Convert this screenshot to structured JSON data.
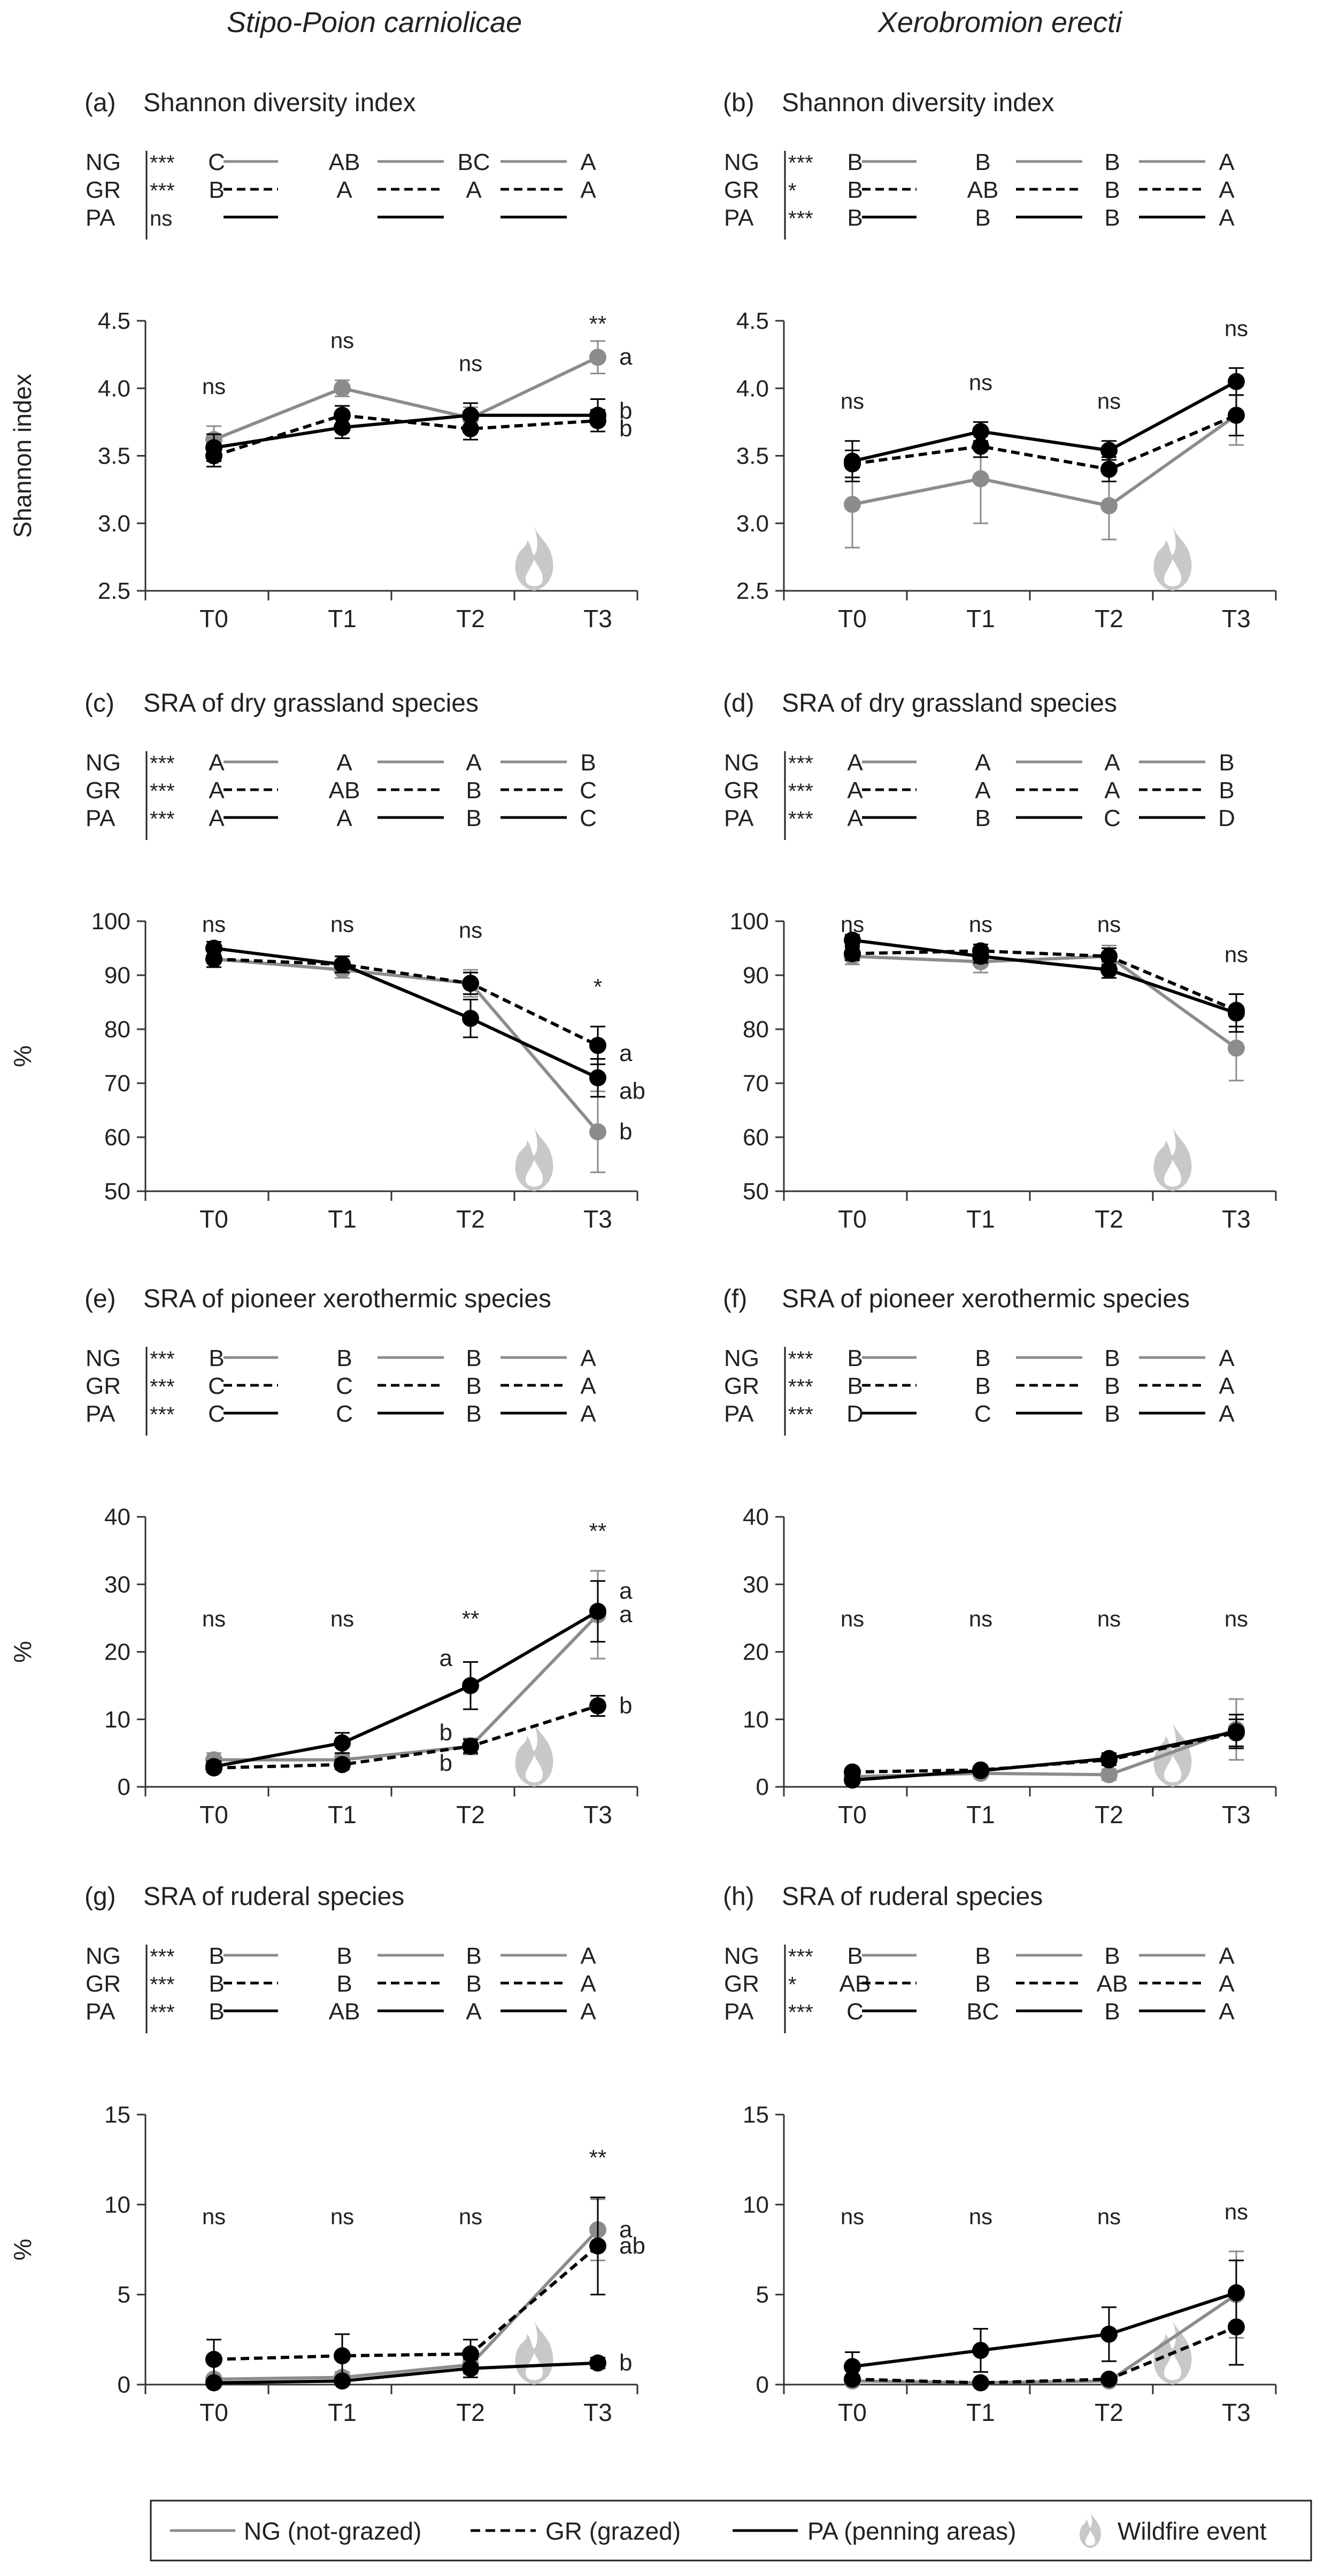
{
  "column_titles": [
    "Stipo-Poion carniolicae",
    "Xerobromion erecti"
  ],
  "legend": {
    "ng": "NG (not-grazed)",
    "gr": "GR (grazed)",
    "pa": "PA (penning areas)",
    "fire": "Wildfire event"
  },
  "colors": {
    "ng": "#8c8c8c",
    "gr": "#000000",
    "pa": "#000000",
    "fire": "#c8c8c8",
    "axis": "#333333"
  },
  "icons": {
    "fire": "flame-icon"
  },
  "shared": {
    "time_labels": [
      "T0",
      "T1",
      "T2",
      "T3"
    ],
    "treatments": [
      "NG",
      "GR",
      "PA"
    ],
    "fire_after": "T2"
  },
  "chart_data": [
    {
      "id": "a",
      "type": "line",
      "panel_label": "(a)",
      "title": "Shannon diversity index",
      "ylabel": "Shannon index",
      "ylim": [
        2.5,
        4.5
      ],
      "yticks": [
        "2.5",
        "3.0",
        "3.5",
        "4.0",
        "4.5"
      ],
      "x": [
        "T0",
        "T1",
        "T2",
        "T3"
      ],
      "series": [
        {
          "name": "NG",
          "values": [
            3.62,
            4.0,
            3.78,
            4.23
          ],
          "err": [
            0.1,
            0.06,
            0.08,
            0.12
          ]
        },
        {
          "name": "GR",
          "values": [
            3.5,
            3.8,
            3.7,
            3.76
          ],
          "err": [
            0.08,
            0.07,
            0.08,
            0.08
          ]
        },
        {
          "name": "PA",
          "values": [
            3.56,
            3.71,
            3.8,
            3.8
          ],
          "err": [
            0.1,
            0.08,
            0.09,
            0.12
          ]
        }
      ],
      "sig_time": [
        "ns",
        "ns",
        "ns",
        "**"
      ],
      "point_letters": [
        {
          "x": "T3",
          "y": 4.23,
          "text": "a"
        },
        {
          "x": "T3",
          "y": 3.83,
          "text": "b"
        },
        {
          "x": "T3",
          "y": 3.7,
          "text": "b"
        }
      ],
      "posthoc": [
        {
          "treat": "NG",
          "sig": "***",
          "letters": [
            "C",
            "AB",
            "BC",
            "A"
          ]
        },
        {
          "treat": "GR",
          "sig": "***",
          "letters": [
            "B",
            "A",
            "A",
            "A"
          ]
        },
        {
          "treat": "PA",
          "sig": "ns",
          "letters": [
            "",
            "",
            "",
            ""
          ]
        }
      ]
    },
    {
      "id": "b",
      "type": "line",
      "panel_label": "(b)",
      "title": "Shannon diversity index",
      "ylabel": "",
      "ylim": [
        2.5,
        4.5
      ],
      "yticks": [
        "2.5",
        "3.0",
        "3.5",
        "4.0",
        "4.5"
      ],
      "x": [
        "T0",
        "T1",
        "T2",
        "T3"
      ],
      "series": [
        {
          "name": "NG",
          "values": [
            3.14,
            3.33,
            3.13,
            3.8
          ],
          "err": [
            0.32,
            0.33,
            0.25,
            0.22
          ]
        },
        {
          "name": "GR",
          "values": [
            3.44,
            3.57,
            3.4,
            3.8
          ],
          "err": [
            0.1,
            0.08,
            0.09,
            0.15
          ]
        },
        {
          "name": "PA",
          "values": [
            3.46,
            3.68,
            3.54,
            4.05
          ],
          "err": [
            0.15,
            0.07,
            0.07,
            0.1
          ]
        }
      ],
      "sig_time": [
        "ns",
        "ns",
        "ns",
        "ns"
      ],
      "point_letters": [],
      "posthoc": [
        {
          "treat": "NG",
          "sig": "***",
          "letters": [
            "B",
            "B",
            "B",
            "A"
          ]
        },
        {
          "treat": "GR",
          "sig": "*",
          "letters": [
            "B",
            "AB",
            "B",
            "A"
          ]
        },
        {
          "treat": "PA",
          "sig": "***",
          "letters": [
            "B",
            "B",
            "B",
            "A"
          ]
        }
      ]
    },
    {
      "id": "c",
      "type": "line",
      "panel_label": "(c)",
      "title": "SRA of dry grassland species",
      "ylabel": "%",
      "ylim": [
        50,
        100
      ],
      "yticks": [
        "50",
        "60",
        "70",
        "80",
        "90",
        "100"
      ],
      "x": [
        "T0",
        "T1",
        "T2",
        "T3"
      ],
      "series": [
        {
          "name": "NG",
          "values": [
            93,
            91,
            88.5,
            61
          ],
          "err": [
            1.5,
            1.5,
            2.5,
            7.5
          ]
        },
        {
          "name": "GR",
          "values": [
            93,
            92,
            88.5,
            77
          ],
          "err": [
            1.5,
            1.5,
            2,
            3.5
          ]
        },
        {
          "name": "PA",
          "values": [
            95,
            92,
            82,
            71
          ],
          "err": [
            1.2,
            1.5,
            3.5,
            3.5
          ]
        }
      ],
      "sig_time": [
        "ns",
        "ns",
        "ns",
        "*"
      ],
      "point_letters": [
        {
          "x": "T3",
          "y": 75.5,
          "text": "a"
        },
        {
          "x": "T3",
          "y": 68.5,
          "text": "ab"
        },
        {
          "x": "T3",
          "y": 61,
          "text": "b"
        }
      ],
      "posthoc": [
        {
          "treat": "NG",
          "sig": "***",
          "letters": [
            "A",
            "A",
            "A",
            "B"
          ]
        },
        {
          "treat": "GR",
          "sig": "***",
          "letters": [
            "A",
            "AB",
            "B",
            "C"
          ]
        },
        {
          "treat": "PA",
          "sig": "***",
          "letters": [
            "A",
            "A",
            "B",
            "C"
          ]
        }
      ]
    },
    {
      "id": "d",
      "type": "line",
      "panel_label": "(d)",
      "title": "SRA of dry grassland species",
      "ylabel": "",
      "ylim": [
        50,
        100
      ],
      "yticks": [
        "50",
        "60",
        "70",
        "80",
        "90",
        "100"
      ],
      "x": [
        "T0",
        "T1",
        "T2",
        "T3"
      ],
      "series": [
        {
          "name": "NG",
          "values": [
            93.5,
            92.5,
            93.5,
            76.5
          ],
          "err": [
            1.5,
            2,
            2,
            6
          ]
        },
        {
          "name": "GR",
          "values": [
            94,
            94.5,
            93.5,
            83.5
          ],
          "err": [
            1.2,
            1.2,
            1.5,
            3
          ]
        },
        {
          "name": "PA",
          "values": [
            96.5,
            93.5,
            91,
            83
          ],
          "err": [
            1,
            1.2,
            1.5,
            3.5
          ]
        }
      ],
      "sig_time": [
        "ns",
        "ns",
        "ns",
        "ns"
      ],
      "point_letters": [],
      "posthoc": [
        {
          "treat": "NG",
          "sig": "***",
          "letters": [
            "A",
            "A",
            "A",
            "B"
          ]
        },
        {
          "treat": "GR",
          "sig": "***",
          "letters": [
            "A",
            "A",
            "A",
            "B"
          ]
        },
        {
          "treat": "PA",
          "sig": "***",
          "letters": [
            "A",
            "B",
            "C",
            "D"
          ]
        }
      ]
    },
    {
      "id": "e",
      "type": "line",
      "panel_label": "(e)",
      "title": "SRA of pioneer xerothermic species",
      "ylabel": "%",
      "ylim": [
        0,
        40
      ],
      "yticks": [
        "0",
        "10",
        "20",
        "30",
        "40"
      ],
      "x": [
        "T0",
        "T1",
        "T2",
        "T3"
      ],
      "series": [
        {
          "name": "NG",
          "values": [
            4,
            4,
            6,
            25.5
          ],
          "err": [
            1,
            0.8,
            1.2,
            6.5
          ]
        },
        {
          "name": "GR",
          "values": [
            2.8,
            3.3,
            6,
            12
          ],
          "err": [
            0.6,
            0.7,
            1,
            1.5
          ]
        },
        {
          "name": "PA",
          "values": [
            3,
            6.5,
            15,
            26
          ],
          "err": [
            0.8,
            1.5,
            3.5,
            4.5
          ]
        }
      ],
      "sig_time": [
        "ns",
        "ns",
        "**",
        "**"
      ],
      "point_letters": [
        {
          "x": "T2",
          "y": 19,
          "text": "a",
          "side": "left"
        },
        {
          "x": "T2",
          "y": 8,
          "text": "b",
          "side": "left"
        },
        {
          "x": "T2",
          "y": 3.5,
          "text": "b",
          "side": "left"
        },
        {
          "x": "T3",
          "y": 29,
          "text": "a"
        },
        {
          "x": "T3",
          "y": 25.5,
          "text": "a"
        },
        {
          "x": "T3",
          "y": 12,
          "text": "b"
        }
      ],
      "posthoc": [
        {
          "treat": "NG",
          "sig": "***",
          "letters": [
            "B",
            "B",
            "B",
            "A"
          ]
        },
        {
          "treat": "GR",
          "sig": "***",
          "letters": [
            "C",
            "C",
            "B",
            "A"
          ]
        },
        {
          "treat": "PA",
          "sig": "***",
          "letters": [
            "C",
            "C",
            "B",
            "A"
          ]
        }
      ]
    },
    {
      "id": "f",
      "type": "line",
      "panel_label": "(f)",
      "title": "SRA of pioneer xerothermic species",
      "ylabel": "",
      "ylim": [
        0,
        40
      ],
      "yticks": [
        "0",
        "10",
        "20",
        "30",
        "40"
      ],
      "x": [
        "T0",
        "T1",
        "T2",
        "T3"
      ],
      "series": [
        {
          "name": "NG",
          "values": [
            1.5,
            2,
            1.8,
            8.5
          ],
          "err": [
            0.6,
            0.5,
            0.8,
            4.5
          ]
        },
        {
          "name": "GR",
          "values": [
            2.2,
            2.5,
            4,
            8
          ],
          "err": [
            0.5,
            0.5,
            0.8,
            2
          ]
        },
        {
          "name": "PA",
          "values": [
            1,
            2.4,
            4.2,
            8.2
          ],
          "err": [
            0.4,
            0.5,
            0.8,
            2.5
          ]
        }
      ],
      "sig_time": [
        "ns",
        "ns",
        "ns",
        "ns"
      ],
      "point_letters": [],
      "posthoc": [
        {
          "treat": "NG",
          "sig": "***",
          "letters": [
            "B",
            "B",
            "B",
            "A"
          ]
        },
        {
          "treat": "GR",
          "sig": "***",
          "letters": [
            "B",
            "B",
            "B",
            "A"
          ]
        },
        {
          "treat": "PA",
          "sig": "***",
          "letters": [
            "D",
            "C",
            "B",
            "A"
          ]
        }
      ]
    },
    {
      "id": "g",
      "type": "line",
      "panel_label": "(g)",
      "title": "SRA of ruderal species",
      "ylabel": "%",
      "ylim": [
        0,
        15
      ],
      "yticks": [
        "0",
        "5",
        "10",
        "15"
      ],
      "x": [
        "T0",
        "T1",
        "T2",
        "T3"
      ],
      "series": [
        {
          "name": "NG",
          "values": [
            0.3,
            0.4,
            1.1,
            8.6
          ],
          "err": [
            0.2,
            0.3,
            0.5,
            1.7
          ]
        },
        {
          "name": "GR",
          "values": [
            1.4,
            1.6,
            1.7,
            7.7
          ],
          "err": [
            1.1,
            1.2,
            0.8,
            2.7
          ]
        },
        {
          "name": "PA",
          "values": [
            0.1,
            0.2,
            0.9,
            1.2
          ],
          "err": [
            0.1,
            0.2,
            0.5,
            0.3
          ]
        }
      ],
      "sig_time": [
        "ns",
        "ns",
        "ns",
        "**"
      ],
      "point_letters": [
        {
          "x": "T3",
          "y": 8.6,
          "text": "a"
        },
        {
          "x": "T3",
          "y": 7.7,
          "text": "ab"
        },
        {
          "x": "T3",
          "y": 1.2,
          "text": "b"
        }
      ],
      "posthoc": [
        {
          "treat": "NG",
          "sig": "***",
          "letters": [
            "B",
            "B",
            "B",
            "A"
          ]
        },
        {
          "treat": "GR",
          "sig": "***",
          "letters": [
            "B",
            "B",
            "B",
            "A"
          ]
        },
        {
          "treat": "PA",
          "sig": "***",
          "letters": [
            "B",
            "AB",
            "A",
            "A"
          ]
        }
      ]
    },
    {
      "id": "h",
      "type": "line",
      "panel_label": "(h)",
      "title": "SRA of ruderal species",
      "ylabel": "",
      "ylim": [
        0,
        15
      ],
      "yticks": [
        "0",
        "5",
        "10",
        "15"
      ],
      "x": [
        "T0",
        "T1",
        "T2",
        "T3"
      ],
      "series": [
        {
          "name": "NG",
          "values": [
            0.2,
            0.1,
            0.2,
            5
          ],
          "err": [
            0.2,
            0.1,
            0.2,
            2.4
          ]
        },
        {
          "name": "GR",
          "values": [
            0.3,
            0.1,
            0.3,
            3.2
          ],
          "err": [
            0.2,
            0.1,
            0.2,
            2.1
          ]
        },
        {
          "name": "PA",
          "values": [
            1,
            1.9,
            2.8,
            5.1
          ],
          "err": [
            0.8,
            1.2,
            1.5,
            1.8
          ]
        }
      ],
      "sig_time": [
        "ns",
        "ns",
        "ns",
        "ns"
      ],
      "point_letters": [],
      "posthoc": [
        {
          "treat": "NG",
          "sig": "***",
          "letters": [
            "B",
            "B",
            "B",
            "A"
          ]
        },
        {
          "treat": "GR",
          "sig": "*",
          "letters": [
            "AB",
            "B",
            "AB",
            "A"
          ]
        },
        {
          "treat": "PA",
          "sig": "***",
          "letters": [
            "C",
            "BC",
            "B",
            "A"
          ]
        }
      ]
    }
  ]
}
